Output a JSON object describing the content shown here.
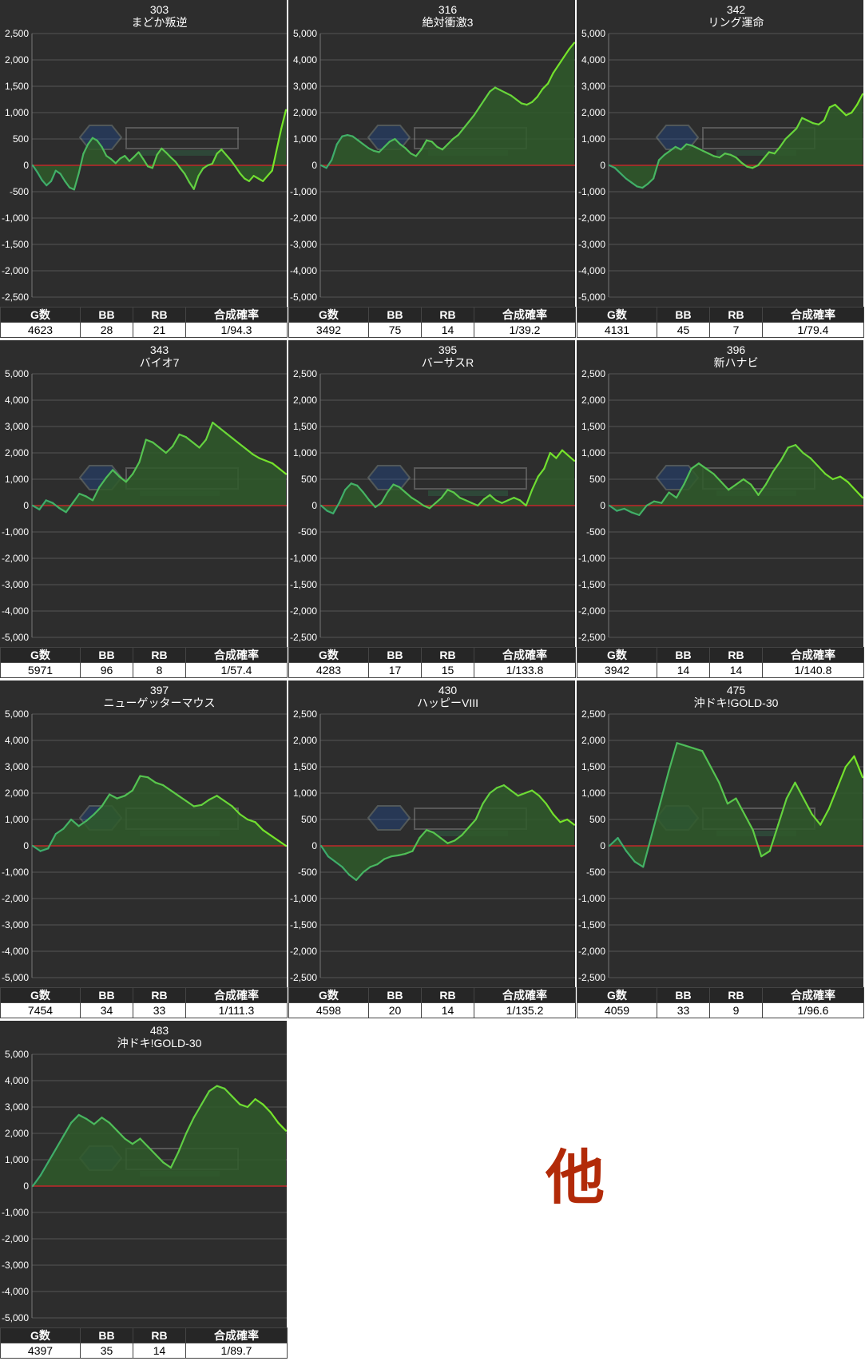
{
  "charts": [
    {
      "number": "303",
      "name": "まどか叛逆",
      "ymax": 2500,
      "yticks": [
        2500,
        2000,
        1500,
        1000,
        500,
        0,
        -500,
        -1000,
        -1500,
        -2000,
        -2500
      ],
      "ytick_labels": [
        "2,500",
        "2,000",
        "1,500",
        "1,000",
        "500",
        "0",
        "-500",
        "-1,000",
        "-1,500",
        "-2,000",
        "-2,500"
      ],
      "stats": {
        "g": "4623",
        "bb": "28",
        "rb": "21",
        "rate": "1/94.3"
      },
      "series": [
        0,
        -130,
        -280,
        -380,
        -300,
        -100,
        -160,
        -300,
        -420,
        -460,
        -150,
        220,
        400,
        520,
        470,
        350,
        180,
        120,
        40,
        130,
        180,
        80,
        160,
        250,
        120,
        -20,
        -50,
        200,
        320,
        240,
        150,
        70,
        -50,
        -160,
        -320,
        -450,
        -200,
        -60,
        0,
        30,
        220,
        300,
        200,
        100,
        -20,
        -150,
        -250,
        -300,
        -200,
        -250,
        -300,
        -200,
        -100,
        300,
        700,
        1050
      ]
    },
    {
      "number": "316",
      "name": "絶対衝激3",
      "ymax": 5000,
      "yticks": [
        5000,
        4000,
        3000,
        2000,
        1000,
        0,
        -1000,
        -2000,
        -3000,
        -4000,
        -5000
      ],
      "ytick_labels": [
        "5,000",
        "4,000",
        "3,000",
        "2,000",
        "1,000",
        "0",
        "-1,000",
        "-2,000",
        "-3,000",
        "-4,000",
        "-5,000"
      ],
      "stats": {
        "g": "3492",
        "bb": "75",
        "rb": "14",
        "rate": "1/39.2"
      },
      "series": [
        0,
        -100,
        200,
        800,
        1100,
        1150,
        1100,
        950,
        800,
        650,
        550,
        500,
        700,
        900,
        1000,
        800,
        650,
        450,
        350,
        600,
        950,
        900,
        700,
        600,
        800,
        1000,
        1150,
        1400,
        1650,
        1900,
        2200,
        2500,
        2800,
        2950,
        2850,
        2750,
        2650,
        2500,
        2350,
        2300,
        2400,
        2600,
        2900,
        3100,
        3500,
        3800,
        4100,
        4400,
        4650
      ]
    },
    {
      "number": "342",
      "name": "リング運命",
      "ymax": 5000,
      "yticks": [
        5000,
        4000,
        3000,
        2000,
        1000,
        0,
        -1000,
        -2000,
        -3000,
        -4000,
        -5000
      ],
      "ytick_labels": [
        "5,000",
        "4,000",
        "3,000",
        "2,000",
        "1,000",
        "0",
        "-1,000",
        "-2,000",
        "-3,000",
        "-4,000",
        "-5,000"
      ],
      "stats": {
        "g": "4131",
        "bb": "45",
        "rb": "7",
        "rate": "1/79.4"
      },
      "series": [
        0,
        -100,
        -300,
        -500,
        -650,
        -800,
        -850,
        -700,
        -500,
        200,
        400,
        550,
        700,
        600,
        800,
        750,
        650,
        550,
        450,
        350,
        300,
        450,
        400,
        300,
        100,
        -50,
        -100,
        0,
        250,
        500,
        450,
        700,
        1000,
        1200,
        1400,
        1800,
        1700,
        1600,
        1550,
        1700,
        2200,
        2300,
        2100,
        1900,
        2000,
        2300,
        2700
      ]
    },
    {
      "number": "343",
      "name": "バイオ7",
      "ymax": 5000,
      "yticks": [
        5000,
        4000,
        3000,
        2000,
        1000,
        0,
        -1000,
        -2000,
        -3000,
        -4000,
        -5000
      ],
      "ytick_labels": [
        "5,000",
        "4,000",
        "3,000",
        "2,000",
        "1,000",
        "0",
        "-1,000",
        "-2,000",
        "-3,000",
        "-4,000",
        "-5,000"
      ],
      "stats": {
        "g": "5971",
        "bb": "96",
        "rb": "8",
        "rate": "1/57.4"
      },
      "series": [
        0,
        -150,
        200,
        100,
        -100,
        -250,
        100,
        450,
        350,
        200,
        700,
        1050,
        1350,
        1100,
        900,
        1200,
        1650,
        2500,
        2400,
        2200,
        2000,
        2250,
        2700,
        2600,
        2400,
        2200,
        2500,
        3150,
        2950,
        2750,
        2550,
        2350,
        2150,
        1950,
        1800,
        1700,
        1600,
        1400,
        1200
      ]
    },
    {
      "number": "395",
      "name": "バーサスR",
      "ymax": 2500,
      "yticks": [
        2500,
        2000,
        1500,
        1000,
        500,
        0,
        -500,
        -1000,
        -1500,
        -2000,
        -2500
      ],
      "ytick_labels": [
        "2,500",
        "2,000",
        "1,500",
        "1,000",
        "500",
        "0",
        "-500",
        "-1,000",
        "-1,500",
        "-2,000",
        "-2,500"
      ],
      "stats": {
        "g": "4283",
        "bb": "17",
        "rb": "15",
        "rate": "1/133.8"
      },
      "series": [
        0,
        -100,
        -150,
        50,
        300,
        420,
        380,
        250,
        100,
        -30,
        50,
        250,
        400,
        350,
        250,
        150,
        80,
        0,
        -50,
        50,
        150,
        300,
        250,
        150,
        100,
        50,
        0,
        120,
        200,
        100,
        50,
        100,
        150,
        100,
        0,
        300,
        550,
        700,
        1000,
        900,
        1050,
        950,
        850
      ]
    },
    {
      "number": "396",
      "name": "新ハナビ",
      "ymax": 2500,
      "yticks": [
        2500,
        2000,
        1500,
        1000,
        500,
        0,
        -500,
        -1000,
        -1500,
        -2000,
        -2500
      ],
      "ytick_labels": [
        "2,500",
        "2,000",
        "1,500",
        "1,000",
        "500",
        "0",
        "-500",
        "-1,000",
        "-1,500",
        "-2,000",
        "-2,500"
      ],
      "stats": {
        "g": "3942",
        "bb": "14",
        "rb": "14",
        "rate": "1/140.8"
      },
      "series": [
        0,
        -100,
        -60,
        -130,
        -180,
        0,
        80,
        50,
        250,
        150,
        400,
        700,
        800,
        700,
        600,
        450,
        300,
        400,
        500,
        400,
        200,
        400,
        650,
        850,
        1100,
        1150,
        1000,
        900,
        750,
        600,
        500,
        550,
        450,
        300,
        150
      ]
    },
    {
      "number": "397",
      "name": "ニューゲッターマウス",
      "ymax": 5000,
      "yticks": [
        5000,
        4000,
        3000,
        2000,
        1000,
        0,
        -1000,
        -2000,
        -3000,
        -4000,
        -5000
      ],
      "ytick_labels": [
        "5,000",
        "4,000",
        "3,000",
        "2,000",
        "1,000",
        "0",
        "-1,000",
        "-2,000",
        "-3,000",
        "-4,000",
        "-5,000"
      ],
      "stats": {
        "g": "7454",
        "bb": "34",
        "rb": "33",
        "rate": "1/111.3"
      },
      "series": [
        0,
        -200,
        -100,
        450,
        650,
        1000,
        750,
        950,
        1200,
        1500,
        1950,
        1800,
        1900,
        2100,
        2650,
        2600,
        2400,
        2300,
        2100,
        1900,
        1700,
        1500,
        1550,
        1750,
        1900,
        1700,
        1500,
        1200,
        1000,
        900,
        600,
        400,
        200,
        0
      ]
    },
    {
      "number": "430",
      "name": "ハッピーVIII",
      "ymax": 2500,
      "yticks": [
        2500,
        2000,
        1500,
        1000,
        500,
        0,
        -500,
        -1000,
        -1500,
        -2000,
        -2500
      ],
      "ytick_labels": [
        "2,500",
        "2,000",
        "1,500",
        "1,000",
        "500",
        "0",
        "-500",
        "-1,000",
        "-1,500",
        "-2,000",
        "-2,500"
      ],
      "stats": {
        "g": "4598",
        "bb": "20",
        "rb": "14",
        "rate": "1/135.2"
      },
      "series": [
        0,
        -200,
        -300,
        -400,
        -550,
        -650,
        -500,
        -400,
        -350,
        -250,
        -200,
        -180,
        -150,
        -100,
        150,
        300,
        250,
        150,
        50,
        100,
        200,
        350,
        500,
        800,
        1000,
        1100,
        1150,
        1050,
        950,
        1000,
        1050,
        950,
        800,
        600,
        450,
        500,
        400
      ]
    },
    {
      "number": "475",
      "name": "沖ドキ!GOLD-30",
      "ymax": 2500,
      "yticks": [
        2500,
        2000,
        1500,
        1000,
        500,
        0,
        -500,
        -1000,
        -1500,
        -2000,
        -2500
      ],
      "ytick_labels": [
        "2,500",
        "2,000",
        "1,500",
        "1,000",
        "500",
        "0",
        "-500",
        "-1,000",
        "-1,500",
        "-2,000",
        "-2,500"
      ],
      "stats": {
        "g": "4059",
        "bb": "33",
        "rb": "9",
        "rate": "1/96.6"
      },
      "series": [
        0,
        150,
        -100,
        -300,
        -400,
        200,
        800,
        1400,
        1950,
        1900,
        1850,
        1800,
        1500,
        1200,
        800,
        900,
        600,
        300,
        -200,
        -100,
        400,
        900,
        1200,
        900,
        600,
        400,
        700,
        1100,
        1500,
        1700,
        1300
      ]
    },
    {
      "number": "483",
      "name": "沖ドキ!GOLD-30",
      "ymax": 5000,
      "yticks": [
        5000,
        4000,
        3000,
        2000,
        1000,
        0,
        -1000,
        -2000,
        -3000,
        -4000,
        -5000
      ],
      "ytick_labels": [
        "5,000",
        "4,000",
        "3,000",
        "2,000",
        "1,000",
        "0",
        "-1,000",
        "-2,000",
        "-3,000",
        "-4,000",
        "-5,000"
      ],
      "stats": {
        "g": "4397",
        "bb": "35",
        "rb": "14",
        "rate": "1/89.7"
      },
      "series": [
        0,
        400,
        900,
        1400,
        1900,
        2400,
        2700,
        2550,
        2350,
        2600,
        2400,
        2100,
        1800,
        1600,
        1800,
        1500,
        1200,
        900,
        700,
        1300,
        2000,
        2600,
        3100,
        3600,
        3800,
        3700,
        3400,
        3100,
        3000,
        3300,
        3100,
        2800,
        2400,
        2100
      ]
    }
  ],
  "other_label": "他",
  "stat_headers": [
    "G数",
    "BB",
    "RB",
    "合成確率"
  ],
  "colors": {
    "panel_bg": "#2d2d2d",
    "line": "#6fd93a",
    "fill": "#2f5a2a",
    "zero_line": "#c0282b",
    "grid": "#555555",
    "text": "#ffffff",
    "header_bg": "#262626",
    "other": "#b22a08"
  },
  "chart_data": [
    {
      "type": "line",
      "title": "303 まどか叛逆",
      "ylim": [
        -2500,
        2500
      ]
    },
    {
      "type": "line",
      "title": "316 絶対衝激3",
      "ylim": [
        -5000,
        5000
      ]
    },
    {
      "type": "line",
      "title": "342 リング運命",
      "ylim": [
        -5000,
        5000
      ]
    },
    {
      "type": "line",
      "title": "343 バイオ7",
      "ylim": [
        -5000,
        5000
      ]
    },
    {
      "type": "line",
      "title": "395 バーサスR",
      "ylim": [
        -2500,
        2500
      ]
    },
    {
      "type": "line",
      "title": "396 新ハナビ",
      "ylim": [
        -2500,
        2500
      ]
    },
    {
      "type": "line",
      "title": "397 ニューゲッターマウス",
      "ylim": [
        -5000,
        5000
      ]
    },
    {
      "type": "line",
      "title": "430 ハッピーVIII",
      "ylim": [
        -2500,
        2500
      ]
    },
    {
      "type": "line",
      "title": "475 沖ドキ!GOLD-30",
      "ylim": [
        -2500,
        2500
      ]
    },
    {
      "type": "line",
      "title": "483 沖ドキ!GOLD-30",
      "ylim": [
        -5000,
        5000
      ]
    }
  ]
}
